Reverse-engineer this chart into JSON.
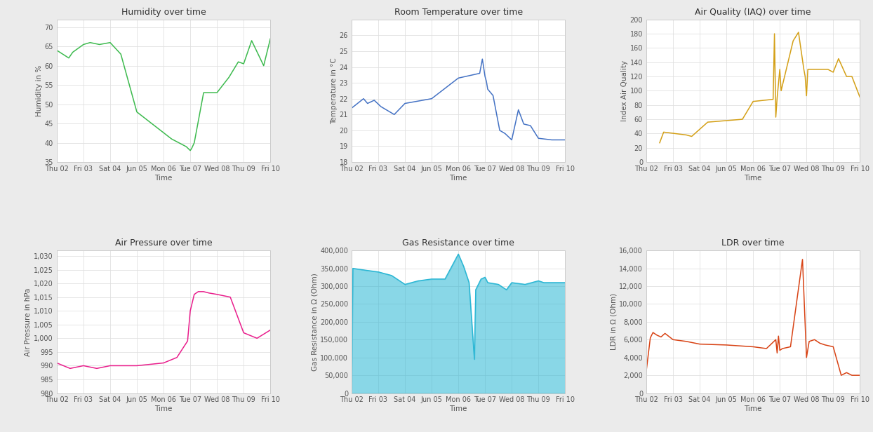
{
  "title_fontsize": 9,
  "axis_label_fontsize": 7.5,
  "tick_fontsize": 7,
  "background_color": "#ffffff",
  "outer_bg": "#ebebeb",
  "grid_color": "#e0e0e0",
  "x_labels": [
    "Thu 02",
    "Fri 03",
    "Sat 04",
    "Jun 05",
    "Mon 06",
    "Tue 07",
    "Wed 08",
    "Thu 09",
    "Fri 10"
  ],
  "x_positions": [
    0,
    1,
    2,
    3,
    4,
    5,
    6,
    7,
    8
  ],
  "humidity": {
    "title": "Humidity over time",
    "ylabel": "Humidity in %",
    "xlabel": "Time",
    "color": "#3dba4e",
    "ylim": [
      35,
      72
    ],
    "yticks": [
      35,
      40,
      45,
      50,
      55,
      60,
      65,
      70
    ],
    "x": [
      0,
      0.45,
      0.6,
      1.0,
      1.25,
      1.6,
      2.0,
      2.4,
      3.0,
      4.3,
      4.85,
      5.0,
      5.05,
      5.15,
      5.5,
      6.0,
      6.45,
      6.8,
      7.0,
      7.3,
      7.75,
      8.0
    ],
    "y": [
      64,
      62,
      63.5,
      65.5,
      66,
      65.5,
      66,
      63,
      48,
      41,
      39,
      38,
      38.5,
      40,
      53,
      53,
      57,
      61,
      60.5,
      66.5,
      60,
      67
    ]
  },
  "temperature": {
    "title": "Room Temperature over time",
    "ylabel": "Temperature in °C",
    "xlabel": "Time",
    "color": "#4472c4",
    "ylim": [
      18,
      27
    ],
    "yticks": [
      18,
      19,
      20,
      21,
      22,
      23,
      24,
      25,
      26
    ],
    "x": [
      0,
      0.45,
      0.6,
      0.85,
      1.1,
      1.6,
      2.0,
      3.0,
      4.0,
      4.8,
      4.9,
      5.0,
      5.05,
      5.1,
      5.3,
      5.55,
      5.75,
      6.0,
      6.25,
      6.45,
      6.7,
      7.0,
      7.5,
      8.0
    ],
    "y": [
      21.4,
      22.0,
      21.7,
      21.9,
      21.5,
      21.0,
      21.7,
      22.0,
      23.3,
      23.6,
      24.5,
      23.4,
      23.1,
      22.6,
      22.2,
      20.0,
      19.8,
      19.4,
      21.3,
      20.4,
      20.3,
      19.5,
      19.4,
      19.4
    ]
  },
  "air_quality": {
    "title": "Air Quality (IAQ) over time",
    "ylabel": "Index Air Quality",
    "xlabel": "Time",
    "color": "#d4a017",
    "ylim": [
      0,
      200
    ],
    "yticks": [
      0,
      20,
      40,
      60,
      80,
      100,
      120,
      140,
      160,
      180,
      200
    ],
    "x": [
      0.5,
      0.65,
      1.5,
      1.7,
      2.3,
      3.6,
      4.0,
      4.75,
      4.8,
      4.85,
      4.9,
      5.0,
      5.05,
      5.5,
      5.7,
      5.9,
      5.95,
      6.0,
      6.05,
      6.5,
      6.8,
      7.0,
      7.2,
      7.5,
      7.7,
      8.0
    ],
    "y": [
      27,
      42,
      38,
      36,
      56,
      60,
      85,
      88,
      180,
      63,
      90,
      130,
      100,
      170,
      182,
      130,
      120,
      93,
      130,
      130,
      130,
      126,
      145,
      120,
      120,
      91
    ]
  },
  "air_pressure": {
    "title": "Air Pressure over time",
    "ylabel": "Air Pressure in hPa",
    "xlabel": "Time",
    "color": "#e91e8c",
    "ylim": [
      980,
      1032
    ],
    "yticks": [
      980,
      985,
      990,
      995,
      1000,
      1005,
      1010,
      1015,
      1020,
      1025,
      1030
    ],
    "x": [
      0,
      0.5,
      1.0,
      1.5,
      2.0,
      3.0,
      4.0,
      4.5,
      4.9,
      5.0,
      5.15,
      5.3,
      5.5,
      5.7,
      6.0,
      6.5,
      7.0,
      7.5,
      8.0
    ],
    "y": [
      991,
      989,
      990,
      989,
      990,
      990,
      991,
      993,
      999,
      1010,
      1016,
      1017,
      1017,
      1016.5,
      1016,
      1015,
      1002,
      1000,
      1003
    ]
  },
  "gas_resistance": {
    "title": "Gas Resistance over time",
    "ylabel": "Gas Resistance in Ω (Ohm)",
    "xlabel": "Time",
    "color": "#29b6d4",
    "fill_color": "#29b6d4",
    "ylim": [
      0,
      400000
    ],
    "yticks": [
      0,
      50000,
      100000,
      150000,
      200000,
      250000,
      300000,
      350000,
      400000
    ],
    "x": [
      0,
      0.05,
      0.5,
      1.0,
      1.5,
      2.0,
      2.5,
      3.0,
      3.5,
      4.0,
      4.2,
      4.4,
      4.6,
      4.65,
      4.85,
      5.0,
      5.1,
      5.5,
      5.8,
      6.0,
      6.5,
      7.0,
      7.2,
      7.5,
      8.0
    ],
    "y": [
      0,
      350000,
      345000,
      340000,
      330000,
      305000,
      315000,
      320000,
      320000,
      390000,
      355000,
      310000,
      95000,
      290000,
      320000,
      325000,
      310000,
      305000,
      290000,
      310000,
      305000,
      315000,
      310000,
      310000,
      310000
    ]
  },
  "ldr": {
    "title": "LDR over time",
    "ylabel": "LDR in Ω (Ohm)",
    "xlabel": "Time",
    "color": "#d84315",
    "ylim": [
      0,
      16000
    ],
    "yticks": [
      0,
      2000,
      4000,
      6000,
      8000,
      10000,
      12000,
      14000,
      16000
    ],
    "x": [
      0,
      0.15,
      0.25,
      0.4,
      0.55,
      0.7,
      1.0,
      1.5,
      2.0,
      3.0,
      4.0,
      4.5,
      4.85,
      4.9,
      4.95,
      5.0,
      5.1,
      5.4,
      5.85,
      6.0,
      6.1,
      6.3,
      6.5,
      6.7,
      7.0,
      7.3,
      7.5,
      7.7,
      8.0
    ],
    "y": [
      2500,
      6200,
      6800,
      6500,
      6300,
      6700,
      6000,
      5800,
      5500,
      5400,
      5200,
      5000,
      6000,
      4500,
      6400,
      4800,
      5000,
      5200,
      15000,
      4000,
      5800,
      6000,
      5600,
      5400,
      5200,
      2000,
      2300,
      2000,
      2000
    ]
  }
}
